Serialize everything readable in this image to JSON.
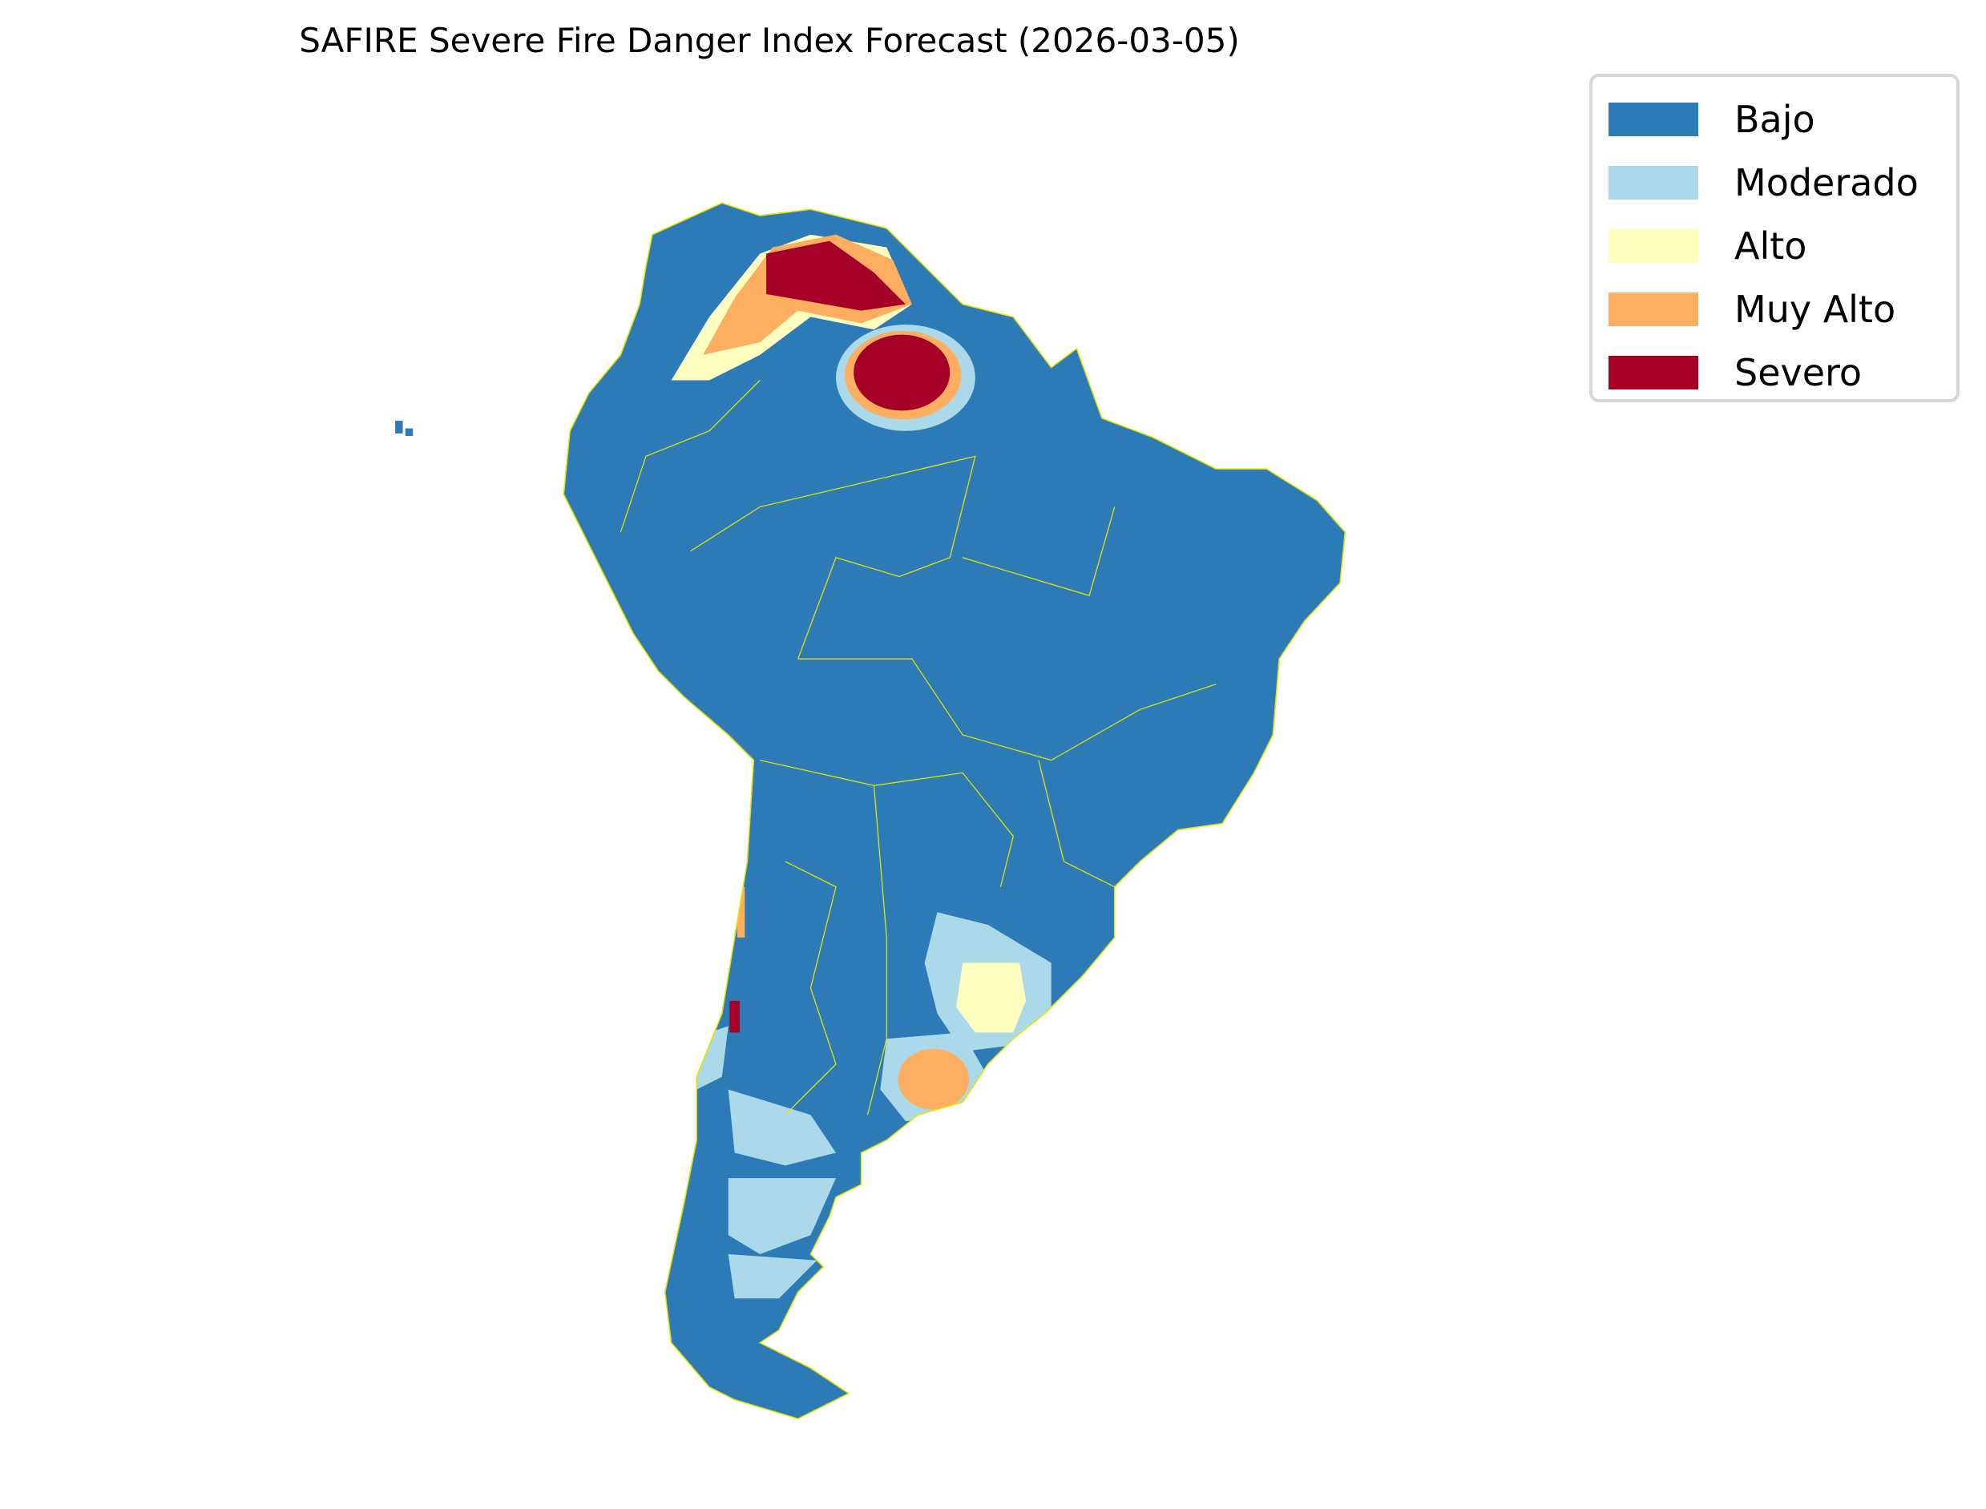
{
  "title": "SAFIRE Severe Fire Danger Index Forecast (2026-03-05)",
  "legend": [
    {
      "label": "Bajo",
      "color": "#2c7bb6"
    },
    {
      "label": "Moderado",
      "color": "#abd9e9"
    },
    {
      "label": "Alto",
      "color": "#ffffbf"
    },
    {
      "label": "Muy Alto",
      "color": "#fdae61"
    },
    {
      "label": "Severo",
      "color": "#a50026"
    }
  ],
  "border_color": "#e5e500"
}
